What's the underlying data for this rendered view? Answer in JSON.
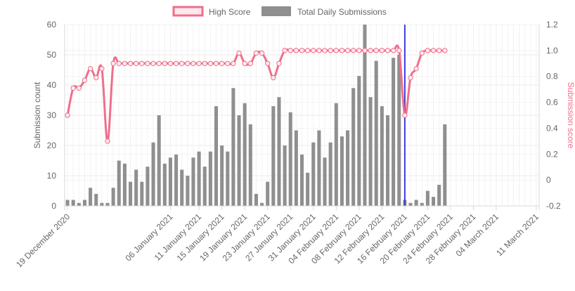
{
  "chart_data": {
    "type": "bar",
    "legend": {
      "placement": "top-center",
      "items": [
        {
          "label": "High Score",
          "color": "#f06e8a"
        },
        {
          "label": "Total Daily Submissions",
          "color": "#8f8f8f"
        }
      ]
    },
    "y_left": {
      "label": "Submission count",
      "min": 0,
      "max": 60,
      "ticks": [
        "0",
        "10",
        "20",
        "30",
        "40",
        "50",
        "60"
      ],
      "color": "#666666"
    },
    "y_right": {
      "label": "Submission score",
      "min": -0.2,
      "max": 1.2,
      "ticks": [
        "-0.2",
        "0",
        "0.2",
        "0.4",
        "0.6",
        "0.8",
        "1.0",
        "1.2"
      ],
      "color": "#f06e8a"
    },
    "x_tick_labels": [
      {
        "day": 0,
        "label": "19 December 2020"
      },
      {
        "day": 18,
        "label": "06 January 2021"
      },
      {
        "day": 23,
        "label": "11 January 2021"
      },
      {
        "day": 27,
        "label": "15 January 2021"
      },
      {
        "day": 31,
        "label": "19 January 2021"
      },
      {
        "day": 35,
        "label": "23 January 2021"
      },
      {
        "day": 39,
        "label": "27 January 2021"
      },
      {
        "day": 43,
        "label": "31 January 2021"
      },
      {
        "day": 47,
        "label": "04 February 2021"
      },
      {
        "day": 51,
        "label": "08 February 2021"
      },
      {
        "day": 55,
        "label": "12 February 2021"
      },
      {
        "day": 59,
        "label": "16 February 2021"
      },
      {
        "day": 63,
        "label": "20 February 2021"
      },
      {
        "day": 67,
        "label": "24 February 2021"
      },
      {
        "day": 71,
        "label": "28 February 2021"
      },
      {
        "day": 75,
        "label": "04 March 2021"
      },
      {
        "day": 82,
        "label": "11 March 2021"
      }
    ],
    "bar_days": [
      0,
      1,
      2,
      3,
      4,
      5,
      6,
      7,
      8,
      9,
      10,
      11,
      12,
      13,
      14,
      15,
      16,
      17,
      18,
      19,
      20,
      21,
      22,
      23,
      24,
      25,
      26,
      27,
      28,
      29,
      30,
      31,
      32,
      33,
      34,
      35,
      36,
      37,
      38,
      39,
      40,
      41,
      42,
      43,
      44,
      45,
      46,
      47,
      48,
      49,
      50,
      51,
      52,
      53,
      54,
      55,
      56,
      57,
      58,
      59,
      60,
      61,
      62,
      63,
      64,
      65,
      66,
      67,
      68,
      69,
      70,
      71,
      72,
      73,
      74,
      75,
      76,
      77,
      78,
      79,
      80,
      81,
      82
    ],
    "series": [
      {
        "name": "Total Daily Submissions",
        "kind": "bar",
        "axis": "left",
        "values": [
          2,
          2,
          1,
          2,
          6,
          4,
          1,
          1,
          6,
          15,
          14,
          8,
          12,
          8,
          13,
          21,
          30,
          14,
          16,
          17,
          12,
          10,
          16,
          18,
          13,
          18,
          33,
          20,
          18,
          39,
          30,
          34,
          27,
          4,
          1,
          8,
          33,
          36,
          20,
          31,
          25,
          17,
          11,
          21,
          25,
          16,
          21,
          34,
          23,
          25,
          39,
          43,
          60,
          36,
          48,
          33,
          30,
          49,
          50,
          2,
          1,
          2,
          1,
          5,
          3,
          7,
          27,
          0,
          0,
          0,
          0,
          0,
          0,
          0,
          0,
          0,
          0,
          0,
          0,
          0,
          0,
          0,
          0
        ]
      },
      {
        "name": "High Score",
        "kind": "line",
        "axis": "right",
        "points": [
          [
            0,
            0.5
          ],
          [
            1,
            0.71
          ],
          [
            2,
            0.71
          ],
          [
            3,
            0.77
          ],
          [
            4,
            0.86
          ],
          [
            5,
            0.79
          ],
          [
            6,
            0.86
          ],
          [
            7,
            0.3
          ],
          [
            8,
            0.9
          ],
          [
            9,
            0.9
          ],
          [
            10,
            0.9
          ],
          [
            11,
            0.9
          ],
          [
            12,
            0.9
          ],
          [
            13,
            0.9
          ],
          [
            14,
            0.9
          ],
          [
            15,
            0.9
          ],
          [
            16,
            0.9
          ],
          [
            17,
            0.9
          ],
          [
            18,
            0.9
          ],
          [
            19,
            0.9
          ],
          [
            20,
            0.9
          ],
          [
            21,
            0.9
          ],
          [
            22,
            0.9
          ],
          [
            23,
            0.9
          ],
          [
            24,
            0.9
          ],
          [
            25,
            0.9
          ],
          [
            26,
            0.9
          ],
          [
            27,
            0.9
          ],
          [
            28,
            0.9
          ],
          [
            29,
            0.9
          ],
          [
            30,
            0.98
          ],
          [
            31,
            0.9
          ],
          [
            32,
            0.9
          ],
          [
            33,
            0.98
          ],
          [
            34,
            0.98
          ],
          [
            35,
            0.9
          ],
          [
            36,
            0.79
          ],
          [
            37,
            0.9
          ],
          [
            38,
            1.0
          ],
          [
            39,
            1.0
          ],
          [
            40,
            1.0
          ],
          [
            41,
            1.0
          ],
          [
            42,
            1.0
          ],
          [
            43,
            1.0
          ],
          [
            44,
            1.0
          ],
          [
            45,
            1.0
          ],
          [
            46,
            1.0
          ],
          [
            47,
            1.0
          ],
          [
            48,
            1.0
          ],
          [
            49,
            1.0
          ],
          [
            50,
            1.0
          ],
          [
            51,
            1.0
          ],
          [
            52,
            1.0
          ],
          [
            53,
            1.0
          ],
          [
            54,
            1.0
          ],
          [
            55,
            1.0
          ],
          [
            56,
            1.0
          ],
          [
            57,
            1.0
          ],
          [
            58,
            1.0
          ],
          [
            59,
            0.5
          ],
          [
            60,
            0.79
          ],
          [
            61,
            0.86
          ],
          [
            62,
            0.98
          ],
          [
            63,
            1.0
          ],
          [
            64,
            1.0
          ],
          [
            65,
            1.0
          ],
          [
            66,
            1.0
          ]
        ]
      }
    ],
    "marker_line": {
      "day": 59,
      "color": "#3b3bdb"
    },
    "colors": {
      "bar": "#8f8f8f",
      "line": "#f06e8a",
      "grid": "#ebebeb",
      "marker": "#3b3bdb"
    }
  }
}
